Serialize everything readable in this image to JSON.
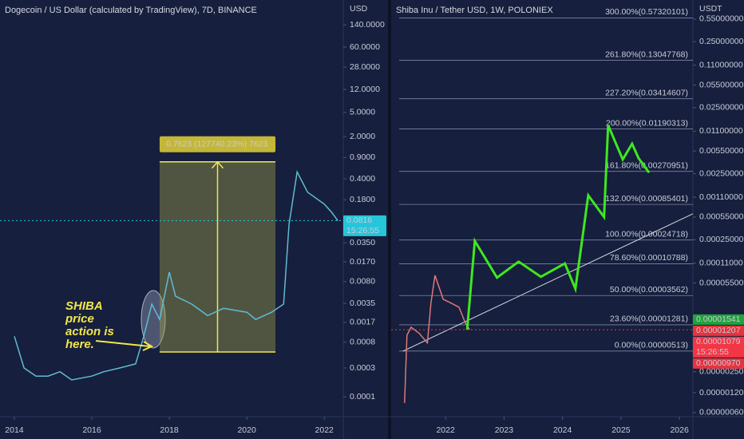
{
  "chart_data": [
    {
      "type": "line",
      "title": "Dogecoin / US Dollar (calculated by TradingView), 7D, BINANCE",
      "y_unit": "USD",
      "log_scale": true,
      "color": "#5fbcd3",
      "x": [
        2014.0,
        2014.25,
        2014.56,
        2014.87,
        2015.18,
        2015.48,
        2016.0,
        2016.31,
        2016.72,
        2017.13,
        2017.34,
        2017.55,
        2017.75,
        2018.0,
        2018.16,
        2018.58,
        2018.99,
        2019.4,
        2020.0,
        2020.23,
        2020.64,
        2020.95,
        2021.09,
        2021.3,
        2021.57,
        2022.0,
        2022.19,
        2022.35
      ],
      "values": [
        0.001,
        0.0003,
        0.00022,
        0.00022,
        0.00026,
        0.00019,
        0.00022,
        0.00026,
        0.0003,
        0.00035,
        0.001,
        0.0034,
        0.0019,
        0.0115,
        0.0046,
        0.0034,
        0.0022,
        0.0029,
        0.0025,
        0.0019,
        0.0025,
        0.0034,
        0.0716,
        0.52,
        0.24,
        0.153,
        0.112,
        0.0816
      ],
      "xlim": [
        2013.63,
        2022.49
      ],
      "ylim": [
        5e-05,
        360
      ],
      "xticks": [
        2014,
        2016,
        2018,
        2020,
        2022
      ],
      "yticks": [
        {
          "value": 140,
          "label": "140.0000"
        },
        {
          "value": 60,
          "label": "60.0000"
        },
        {
          "value": 28,
          "label": "28.0000"
        },
        {
          "value": 12,
          "label": "12.0000"
        },
        {
          "value": 5,
          "label": "5.0000"
        },
        {
          "value": 2,
          "label": "2.0000"
        },
        {
          "value": 0.9,
          "label": "0.9000"
        },
        {
          "value": 0.4,
          "label": "0.4000"
        },
        {
          "value": 0.18,
          "label": "0.1800"
        },
        {
          "value": 0.035,
          "label": "0.0350"
        },
        {
          "value": 0.017,
          "label": "0.0170"
        },
        {
          "value": 0.008,
          "label": "0.0080"
        },
        {
          "value": 0.0035,
          "label": "0.0035"
        },
        {
          "value": 0.0017,
          "label": "0.0017"
        },
        {
          "value": 0.0008,
          "label": "0.0008"
        },
        {
          "value": 0.0003,
          "label": "0.0003"
        },
        {
          "value": 0.0001,
          "label": "0.0001"
        }
      ],
      "price_labels": [
        {
          "value": 0.0816,
          "label": "0.0816",
          "color": "#26c6da",
          "countdown": "15:26:55"
        }
      ],
      "measure": {
        "label": "0.7623 (127740.23%) 7623",
        "x": [
          2017.75,
          2020.74
        ],
        "y": [
          0.00055,
          0.7623
        ]
      },
      "annotation": [
        "SHIBA",
        "price",
        "action is",
        "here."
      ]
    },
    {
      "type": "line",
      "title": "Shiba Inu / Tether USD, 1W, POLONIEX",
      "y_unit": "USDT",
      "log_scale": true,
      "color": "#e0767a",
      "x": [
        2021.3,
        2021.34,
        2021.41,
        2021.55,
        2021.69,
        2021.75,
        2021.82,
        2021.96,
        2022.1,
        2022.23,
        2022.34,
        2022.41
      ],
      "values": [
        8.4e-07,
        8.9e-06,
        1.18e-05,
        9.5e-06,
        6.8e-06,
        2.72e-05,
        7.2e-05,
        3.13e-05,
        2.72e-05,
        2.37e-05,
        1.36e-05,
        1.09e-05
      ],
      "xlim": [
        2021.07,
        2026.23
      ],
      "ylim": [
        5.5e-07,
        1.07
      ],
      "xticks": [
        2022,
        2023,
        2024,
        2025,
        2026
      ],
      "yticks": [
        {
          "value": 0.55,
          "label": "0.55000000"
        },
        {
          "value": 0.25,
          "label": "0.25000000"
        },
        {
          "value": 0.11,
          "label": "0.11000000"
        },
        {
          "value": 0.055,
          "label": "0.05500000"
        },
        {
          "value": 0.025,
          "label": "0.02500000"
        },
        {
          "value": 0.011,
          "label": "0.01100000"
        },
        {
          "value": 0.0055,
          "label": "0.00550000"
        },
        {
          "value": 0.0025,
          "label": "0.00250000"
        },
        {
          "value": 0.0011,
          "label": "0.00110000"
        },
        {
          "value": 0.00055,
          "label": "0.00055000"
        },
        {
          "value": 0.00025,
          "label": "0.00025000"
        },
        {
          "value": 0.00011,
          "label": "0.00011000"
        },
        {
          "value": 5.5e-05,
          "label": "0.00005500"
        },
        {
          "value": 2.5e-06,
          "label": "0.00000250"
        },
        {
          "value": 1.2e-06,
          "label": "0.00000120"
        },
        {
          "value": 6e-07,
          "label": "0.00000060"
        }
      ],
      "fib_levels": [
        {
          "value": 0.57320101,
          "label": "300.00%(0.57320101)"
        },
        {
          "value": 0.13047768,
          "label": "261.80%(0.13047768)"
        },
        {
          "value": 0.03414607,
          "label": "227.20%(0.03414607)"
        },
        {
          "value": 0.01190313,
          "label": "200.00%(0.01190313)"
        },
        {
          "value": 0.00270951,
          "label": "161.80%(0.00270951)"
        },
        {
          "value": 0.00085401,
          "label": "132.00%(0.00085401)"
        },
        {
          "value": 0.00024718,
          "label": "100.00%(0.00024718)"
        },
        {
          "value": 0.00010788,
          "label": "78.60%(0.00010788)"
        },
        {
          "value": 3.562e-05,
          "label": "50.00%(0.00003562)"
        },
        {
          "value": 1.281e-05,
          "label": "23.60%(0.00001281)"
        },
        {
          "value": 5.13e-06,
          "label": "0.00%(0.00000513)"
        }
      ],
      "projection": {
        "color": "#3ee81f",
        "x": [
          2022.37,
          2022.5,
          2022.88,
          2023.25,
          2023.63,
          2024.04,
          2024.22,
          2024.44,
          2024.71,
          2024.78,
          2025.03,
          2025.19,
          2025.3,
          2025.48
        ],
        "values": [
          1.08e-05,
          0.000239,
          6.65e-05,
          0.000116,
          6.84e-05,
          0.000109,
          4.5e-05,
          0.00117,
          0.00055,
          0.0136,
          0.0041,
          0.0071,
          0.0043,
          0.0026
        ]
      },
      "trendline": {
        "color": "#d8dbe4",
        "x": [
          2021.27,
          2026.23
        ],
        "values": [
          5.1e-06,
          0.000617
        ]
      },
      "price_labels": [
        {
          "value": 1.541e-05,
          "label": "0.00001541",
          "color": "#1fa33b"
        },
        {
          "value": 1.207e-05,
          "label": "0.00001207",
          "color": "#e5343f"
        },
        {
          "value": 1.079e-05,
          "label": "0.00001079",
          "color": "#f23645",
          "countdown": "15:26:55"
        },
        {
          "value": 9.7e-06,
          "label": "0.00000970",
          "color": "#e5343f"
        }
      ]
    }
  ]
}
